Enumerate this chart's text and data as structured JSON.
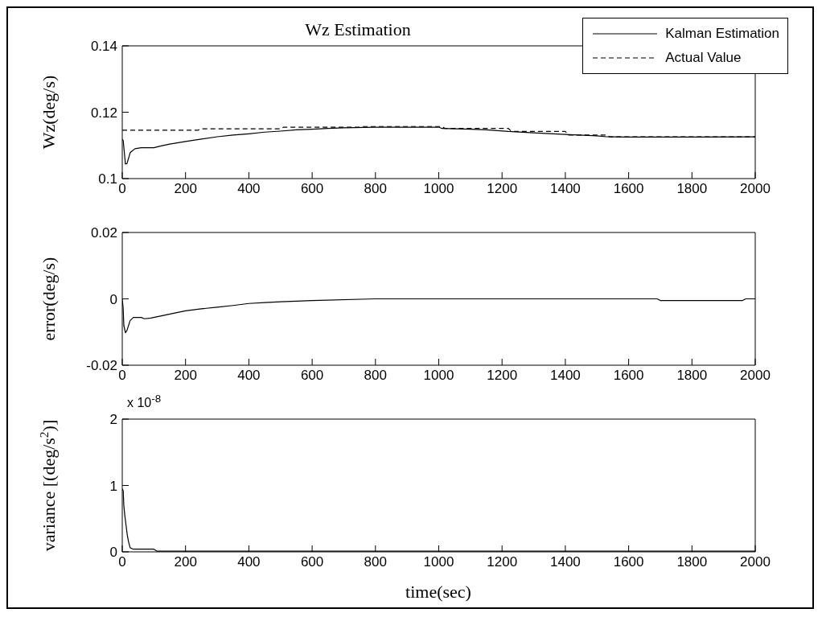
{
  "chart_data": [
    {
      "type": "line",
      "title": "Wz Estimation",
      "ylabel": "Wz(deg/s)",
      "xlim": [
        0,
        2000
      ],
      "xticks": [
        0,
        200,
        400,
        600,
        800,
        1000,
        1200,
        1400,
        1600,
        1800,
        2000
      ],
      "ylim": [
        0.1,
        0.14
      ],
      "yticks": [
        0.1,
        0.12,
        0.14
      ],
      "legend": "top right",
      "series": [
        {
          "name": "Kalman Estimation",
          "color": "#000000",
          "line_style": "solid",
          "x": [
            0,
            3,
            10,
            15,
            25,
            40,
            60,
            100,
            120,
            150,
            200,
            250,
            300,
            350,
            400,
            450,
            500,
            550,
            600,
            650,
            700,
            800,
            900,
            1000,
            1010,
            1100,
            1150,
            1220,
            1300,
            1400,
            1500,
            1530,
            1600,
            1800,
            2000
          ],
          "values": [
            0.1118,
            0.1115,
            0.1044,
            0.1045,
            0.1078,
            0.109,
            0.1093,
            0.1093,
            0.1098,
            0.1104,
            0.1112,
            0.1119,
            0.1126,
            0.1131,
            0.1135,
            0.114,
            0.1143,
            0.1147,
            0.1149,
            0.1151,
            0.1153,
            0.1155,
            0.1155,
            0.1155,
            0.1151,
            0.1149,
            0.1147,
            0.1142,
            0.1138,
            0.1133,
            0.1129,
            0.1126,
            0.1125,
            0.1125,
            0.1126
          ]
        },
        {
          "name": "Actual Value",
          "color": "#000000",
          "line_style": "dashed",
          "x": [
            0,
            240,
            250,
            500,
            510,
            750,
            760,
            1010,
            1020,
            1220,
            1230,
            1400,
            1410,
            1530,
            1540,
            2000
          ],
          "values": [
            0.1146,
            0.1146,
            0.115,
            0.115,
            0.1155,
            0.1155,
            0.1157,
            0.1157,
            0.1151,
            0.1151,
            0.1142,
            0.1142,
            0.1131,
            0.1131,
            0.1126,
            0.1126
          ]
        }
      ]
    },
    {
      "type": "line",
      "ylabel": "error(deg/s)",
      "xlim": [
        0,
        2000
      ],
      "xticks": [
        0,
        200,
        400,
        600,
        800,
        1000,
        1200,
        1400,
        1600,
        1800,
        2000
      ],
      "ylim": [
        -0.02,
        0.02
      ],
      "yticks": [
        -0.02,
        0,
        0.02
      ],
      "series": [
        {
          "color": "#000000",
          "x": [
            0,
            3,
            5,
            10,
            15,
            25,
            35,
            60,
            70,
            90,
            130,
            160,
            200,
            250,
            300,
            350,
            400,
            450,
            500,
            600,
            800,
            1690,
            1700,
            1960,
            1970,
            2000
          ],
          "values": [
            0,
            -0.003,
            -0.008,
            -0.0102,
            -0.0095,
            -0.0065,
            -0.0056,
            -0.0056,
            -0.006,
            -0.0058,
            -0.005,
            -0.0044,
            -0.0036,
            -0.003,
            -0.0025,
            -0.002,
            -0.0014,
            -0.0011,
            -0.0009,
            -0.0005,
            0,
            0,
            -0.0005,
            -0.0005,
            0,
            0
          ]
        }
      ]
    },
    {
      "type": "line",
      "ylabel": "variance [(deg/s$^{2}$)]",
      "xlabel": "time(sec)",
      "annotations": [
        "x 10$^{-8}$"
      ],
      "xlim": [
        0,
        2000
      ],
      "xticks": [
        0,
        200,
        400,
        600,
        800,
        1000,
        1200,
        1400,
        1600,
        1800,
        2000
      ],
      "ylim": [
        0,
        2
      ],
      "yticks": [
        0,
        1,
        2
      ],
      "series": [
        {
          "color": "#000000",
          "x": [
            0,
            3,
            5,
            8,
            12,
            16,
            20,
            25,
            35,
            100,
            110,
            2000
          ],
          "values": [
            0.95,
            0.92,
            0.7,
            0.55,
            0.4,
            0.25,
            0.15,
            0.06,
            0.04,
            0.04,
            0.01,
            0.01
          ]
        }
      ]
    }
  ]
}
